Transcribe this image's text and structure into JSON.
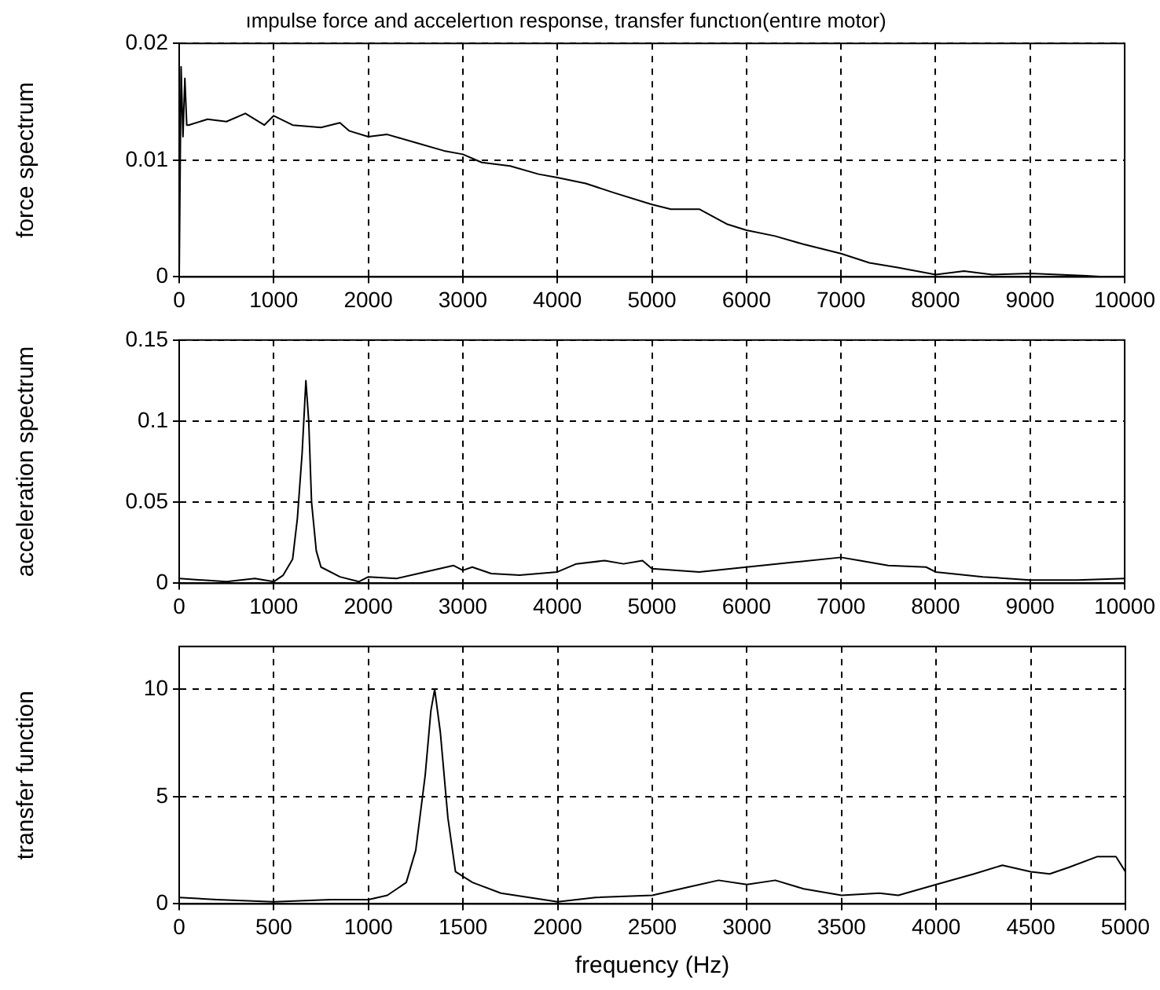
{
  "chart_data": [
    {
      "type": "line",
      "title": "ımpulse force and accelertıon response, transfer functıon(entıre motor)",
      "ylabel": "force spectrum",
      "xlim": [
        0,
        10000
      ],
      "xticks": [
        0,
        1000,
        2000,
        3000,
        4000,
        5000,
        6000,
        7000,
        8000,
        9000,
        10000
      ],
      "ylim": [
        0,
        0.02
      ],
      "yticks": [
        0,
        0.01,
        0.02
      ],
      "grid": true,
      "legend": false,
      "marker": "none",
      "line_style": "solid",
      "series": [
        {
          "color": "#000000",
          "x": [
            0,
            20,
            40,
            60,
            80,
            100,
            300,
            500,
            700,
            900,
            1000,
            1200,
            1500,
            1700,
            1800,
            2000,
            2200,
            2500,
            2800,
            3000,
            3200,
            3500,
            3800,
            4000,
            4300,
            4600,
            5000,
            5200,
            5500,
            5800,
            6000,
            6300,
            6600,
            7000,
            7300,
            7600,
            8000,
            8300,
            8600,
            9000,
            9300,
            9600,
            9800
          ],
          "values": [
            0,
            0.018,
            0.012,
            0.017,
            0.013,
            0.013,
            0.0135,
            0.0133,
            0.014,
            0.013,
            0.0138,
            0.013,
            0.0128,
            0.0132,
            0.0125,
            0.012,
            0.0122,
            0.0115,
            0.0108,
            0.0105,
            0.0098,
            0.0095,
            0.0088,
            0.0085,
            0.008,
            0.0072,
            0.0062,
            0.0058,
            0.0058,
            0.0045,
            0.004,
            0.0035,
            0.0028,
            0.002,
            0.0012,
            0.0008,
            0.0002,
            0.0005,
            0.0002,
            0.0003,
            0.0002,
            0.0001,
            0
          ]
        }
      ]
    },
    {
      "type": "line",
      "ylabel": "acceleration spectrum",
      "xlim": [
        0,
        10000
      ],
      "xticks": [
        0,
        1000,
        2000,
        3000,
        4000,
        5000,
        6000,
        7000,
        8000,
        9000,
        10000
      ],
      "ylim": [
        0,
        0.15
      ],
      "yticks": [
        0,
        0.05,
        0.1,
        0.15
      ],
      "grid": true,
      "legend": false,
      "marker": "none",
      "line_style": "solid",
      "series": [
        {
          "color": "#000000",
          "x": [
            0,
            500,
            800,
            1000,
            1100,
            1200,
            1250,
            1300,
            1340,
            1370,
            1400,
            1450,
            1500,
            1700,
            1900,
            2000,
            2300,
            2600,
            2900,
            3000,
            3100,
            3300,
            3600,
            4000,
            4200,
            4500,
            4700,
            4900,
            5000,
            5500,
            6000,
            6500,
            7000,
            7200,
            7500,
            7900,
            8000,
            8500,
            9000,
            9500,
            10000
          ],
          "values": [
            0.003,
            0.001,
            0.003,
            0.001,
            0.005,
            0.015,
            0.04,
            0.08,
            0.125,
            0.1,
            0.05,
            0.02,
            0.01,
            0.004,
            0.001,
            0.004,
            0.003,
            0.007,
            0.011,
            0.008,
            0.01,
            0.006,
            0.005,
            0.007,
            0.012,
            0.014,
            0.012,
            0.014,
            0.009,
            0.007,
            0.01,
            0.013,
            0.016,
            0.014,
            0.011,
            0.01,
            0.007,
            0.004,
            0.002,
            0.002,
            0.003
          ]
        }
      ]
    },
    {
      "type": "line",
      "xlabel": "frequency (Hz)",
      "ylabel": "transfer function",
      "xlim": [
        0,
        5000
      ],
      "xticks": [
        0,
        500,
        1000,
        1500,
        2000,
        2500,
        3000,
        3500,
        4000,
        4500,
        5000
      ],
      "ylim": [
        0,
        12
      ],
      "yticks": [
        0,
        5,
        10
      ],
      "grid": true,
      "legend": false,
      "marker": "none",
      "line_style": "solid",
      "series": [
        {
          "color": "#000000",
          "x": [
            0,
            200,
            500,
            800,
            1000,
            1100,
            1200,
            1250,
            1300,
            1330,
            1350,
            1380,
            1420,
            1460,
            1550,
            1700,
            1850,
            2000,
            2200,
            2500,
            2700,
            2850,
            3000,
            3150,
            3300,
            3500,
            3700,
            3800,
            4000,
            4200,
            4350,
            4500,
            4600,
            4700,
            4850,
            4950,
            5000
          ],
          "values": [
            0.3,
            0.2,
            0.1,
            0.2,
            0.2,
            0.4,
            1,
            2.5,
            6,
            9,
            10,
            8,
            4,
            1.5,
            1,
            0.5,
            0.3,
            0.1,
            0.3,
            0.4,
            0.8,
            1.1,
            0.9,
            1.1,
            0.7,
            0.4,
            0.5,
            0.4,
            0.9,
            1.4,
            1.8,
            1.5,
            1.4,
            1.7,
            2.2,
            2.2,
            1.5
          ]
        }
      ]
    }
  ]
}
